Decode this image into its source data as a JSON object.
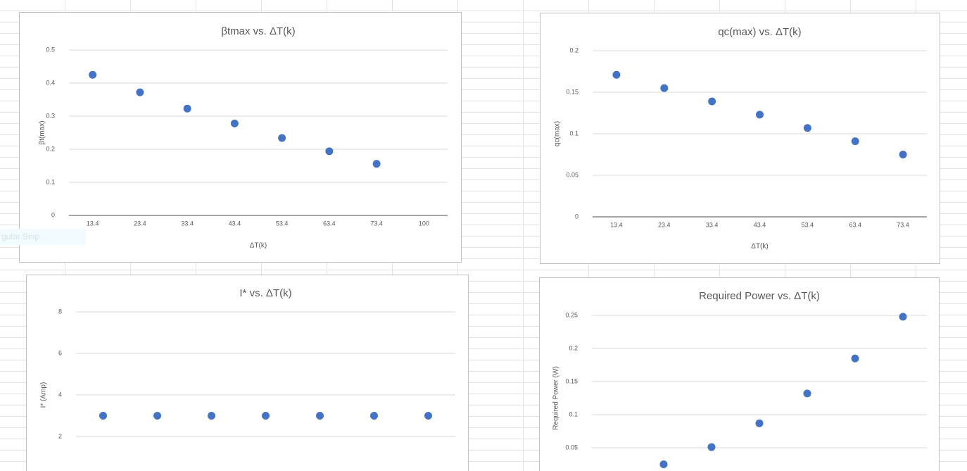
{
  "overlay_text": "gular Snip",
  "chart_data": [
    {
      "type": "scatter",
      "title": "βtmax vs. ΔT(k)",
      "x_label": "ΔT(k)",
      "y_label": "βt(max)",
      "categories": [
        "13.4",
        "23.4",
        "33.4",
        "43.4",
        "53.4",
        "63.4",
        "73.4",
        "100"
      ],
      "series": [
        {
          "name": "βt(max)",
          "color": "#4472c4",
          "values": [
            0.425,
            0.372,
            0.323,
            0.278,
            0.234,
            0.194,
            0.156,
            null
          ]
        }
      ],
      "ylim": [
        0,
        0.5
      ],
      "yticks": [
        0,
        0.1,
        0.2,
        0.3,
        0.4,
        0.5
      ],
      "grid": true
    },
    {
      "type": "scatter",
      "title": "qc(max) vs. ΔT(k)",
      "x_label": "ΔT(k)",
      "y_label": "qc(max)",
      "categories": [
        "13.4",
        "23.4",
        "33.4",
        "43.4",
        "53.4",
        "63.4",
        "73.4"
      ],
      "series": [
        {
          "name": "qc(max)",
          "color": "#4472c4",
          "values": [
            0.171,
            0.155,
            0.139,
            0.123,
            0.107,
            0.091,
            0.075
          ]
        }
      ],
      "ylim": [
        0,
        0.2
      ],
      "yticks": [
        0,
        0.05,
        0.1,
        0.15,
        0.2
      ],
      "grid": true
    },
    {
      "type": "scatter",
      "title": "I* vs. ΔT(k)",
      "y_label": "I* (Amp)",
      "series": [
        {
          "name": "I*",
          "color": "#4472c4",
          "values": [
            3,
            3,
            3,
            3,
            3,
            3,
            3
          ]
        }
      ],
      "ylim": [
        0,
        8
      ],
      "yticks": [
        2,
        4,
        6,
        8
      ],
      "grid": true
    },
    {
      "type": "scatter",
      "title": "Required Power vs. ΔT(k)",
      "y_label": "Required Power (W)",
      "series": [
        {
          "name": "Required Power",
          "color": "#4472c4",
          "values": [
            null,
            0.025,
            0.051,
            0.087,
            0.132,
            0.185,
            0.248
          ]
        }
      ],
      "ylim": [
        0,
        0.25
      ],
      "yticks": [
        0.05,
        0.1,
        0.15,
        0.2,
        0.25
      ],
      "grid": true
    }
  ]
}
